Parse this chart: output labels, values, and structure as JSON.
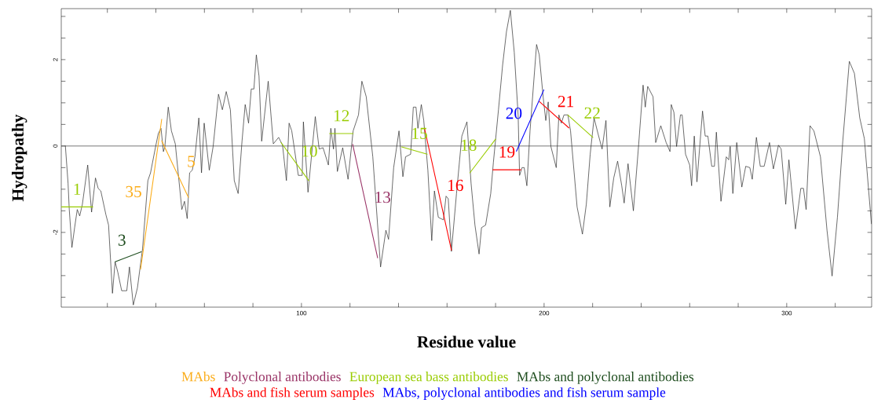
{
  "chart_data": {
    "type": "line",
    "xlabel": "Residue value",
    "ylabel": "Hydropathy",
    "xlim": [
      1,
      335
    ],
    "ylim": [
      -3.73,
      3.18
    ],
    "xticks": [
      {
        "value": 20,
        "label": null
      },
      {
        "value": 40,
        "label": null
      },
      {
        "value": 60,
        "label": null
      },
      {
        "value": 80,
        "label": null
      },
      100,
      {
        "value": 120,
        "label": null
      },
      {
        "value": 140,
        "label": null
      },
      {
        "value": 160,
        "label": null
      },
      {
        "value": 180,
        "label": null
      },
      200,
      {
        "value": 220,
        "label": null
      },
      {
        "value": 240,
        "label": null
      },
      {
        "value": 260,
        "label": null
      },
      {
        "value": 280,
        "label": null
      },
      300,
      {
        "value": 320,
        "label": null
      }
    ],
    "yticks": [
      {
        "value": -3.5,
        "label": null
      },
      {
        "value": -3,
        "label": null
      },
      {
        "value": -2.5,
        "label": null
      },
      -2,
      {
        "value": -1.5,
        "label": null
      },
      {
        "value": -1,
        "label": null
      },
      {
        "value": -0.5,
        "label": null
      },
      0,
      {
        "value": 0.5,
        "label": null
      },
      {
        "value": 1,
        "label": null
      },
      {
        "value": 1.5,
        "label": null
      },
      2,
      {
        "value": 2.5,
        "label": null
      },
      {
        "value": 3,
        "label": null
      }
    ],
    "legend": "bottom",
    "ref_lines": [
      {
        "axis": "y",
        "value": 0,
        "color": "#555555"
      }
    ],
    "series": [
      {
        "color": "#222222",
        "x": [
          2.7,
          3.8,
          4.3,
          5.4,
          6.5,
          7.6,
          8.6,
          9.7,
          11.9,
          13.5,
          15.1,
          16.2,
          17.3,
          19.4,
          20.5,
          22.1,
          23.2,
          24.3,
          25.9,
          28.0,
          29.1,
          30.7,
          32.4,
          34.5,
          36.7,
          37.8,
          39.9,
          41.0,
          42.1,
          43.1,
          43.7,
          45.1,
          46.4,
          48.0,
          50.7,
          51.8,
          52.9,
          53.9,
          55.0,
          56.1,
          57.7,
          58.8,
          59.9,
          62.0,
          63.6,
          65.8,
          67.4,
          69.0,
          70.7,
          72.3,
          73.9,
          75.5,
          76.8,
          78.2,
          79.3,
          80.4,
          81.4,
          82.5,
          83.6,
          86.3,
          88.4,
          90.6,
          92.2,
          93.8,
          94.9,
          96.0,
          98.7,
          100.3,
          100.8,
          102.7,
          105.7,
          107.3,
          108.9,
          111.1,
          112.1,
          113.2,
          113.8,
          114.8,
          117.0,
          119.2,
          121.3,
          123.5,
          124.9,
          126.7,
          129.4,
          132.6,
          134.8,
          135.9,
          138.0,
          140.2,
          141.8,
          142.9,
          145.0,
          146.1,
          147.2,
          148.0,
          149.4,
          150.4,
          152.1,
          153.7,
          154.8,
          156.4,
          158.5,
          159.6,
          160.5,
          161.8,
          163.9,
          166.1,
          168.2,
          169.9,
          171.5,
          173.2,
          174.2,
          175.9,
          178.0,
          179.1,
          181.2,
          182.9,
          184.5,
          186.1,
          187.7,
          189.3,
          189.9,
          190.9,
          191.8,
          192.9,
          194.2,
          196.9,
          198.0,
          199.6,
          200.7,
          201.7,
          202.8,
          205.0,
          206.1,
          207.1,
          208.2,
          209.8,
          210.9,
          213.6,
          215.8,
          217.4,
          219.0,
          220.6,
          222.2,
          223.9,
          225.5,
          227.1,
          228.7,
          230.3,
          232.0,
          233.0,
          234.6,
          236.8,
          239.0,
          240.8,
          241.7,
          242.7,
          244.9,
          246.0,
          248.1,
          250.3,
          251.9,
          252.4,
          253.5,
          254.6,
          256.2,
          256.9,
          258.3,
          260.0,
          260.8,
          261.9,
          263.0,
          265.3,
          266.4,
          267.5,
          269.1,
          270.2,
          271.0,
          272.9,
          275.1,
          276.1,
          276.7,
          277.8,
          279.4,
          281.5,
          283.1,
          284.8,
          285.8,
          287.5,
          289.1,
          290.7,
          292.9,
          294.5,
          296.6,
          297.7,
          299.6,
          300.9,
          303.6,
          305.8,
          306.9,
          308.0,
          309.6,
          311.2,
          313.9,
          316.6,
          318.7,
          320.9,
          323.1,
          325.8,
          327.9,
          330.1,
          332.0,
          334.9
        ],
        "values": [
          0.0,
          -0.86,
          -1.47,
          -2.35,
          -1.89,
          -1.47,
          -1.62,
          -1.35,
          -0.44,
          -1.53,
          -0.74,
          -0.98,
          -1.04,
          -1.59,
          -1.83,
          -3.41,
          -2.68,
          -2.92,
          -3.35,
          -3.35,
          -2.8,
          -3.68,
          -3.28,
          -2.38,
          -0.8,
          -0.62,
          -0.01,
          0.29,
          0.41,
          -0.13,
          -0.01,
          0.9,
          0.35,
          0.05,
          -1.47,
          -1.28,
          -1.68,
          -0.62,
          -0.56,
          -0.25,
          0.65,
          -0.62,
          0.53,
          -0.56,
          -0.01,
          1.2,
          0.84,
          1.26,
          0.84,
          -0.8,
          -1.1,
          0.11,
          0.96,
          0.53,
          1.32,
          1.32,
          2.11,
          1.62,
          0.11,
          1.5,
          0.05,
          0.2,
          0.02,
          -0.8,
          0.53,
          0.35,
          -0.68,
          -0.68,
          0.56,
          -1.07,
          0.68,
          -0.07,
          -0.04,
          -0.44,
          0.41,
          -0.07,
          0.41,
          -0.59,
          -0.04,
          -0.77,
          0.35,
          0.72,
          1.5,
          1.14,
          -0.25,
          -2.8,
          -1.95,
          -2.16,
          -0.5,
          0.35,
          -0.71,
          -0.25,
          -0.19,
          0.9,
          0.9,
          0.41,
          0.96,
          0.59,
          -0.56,
          -2.19,
          -1.04,
          -1.65,
          -1.71,
          -1.16,
          -1.22,
          -2.44,
          -1.1,
          0.23,
          0.56,
          -0.86,
          -1.83,
          -2.5,
          -1.89,
          -1.83,
          -1.1,
          -0.38,
          0.84,
          1.87,
          2.65,
          3.14,
          2.17,
          0.72,
          -0.68,
          -0.5,
          -0.5,
          -0.92,
          0.35,
          2.35,
          2.11,
          1.14,
          0.59,
          1.02,
          -0.01,
          -0.5,
          0.72,
          0.53,
          0.72,
          0.72,
          0.35,
          -1.41,
          -2.04,
          -1.35,
          -0.19,
          0.65,
          0.29,
          -0.07,
          0.59,
          -1.41,
          -0.74,
          -0.35,
          -0.92,
          -1.32,
          -0.41,
          -1.5,
          0.05,
          1.41,
          0.9,
          1.38,
          1.14,
          0.08,
          0.47,
          0.08,
          -0.13,
          0.96,
          0.78,
          -0.01,
          0.72,
          0.72,
          -0.19,
          -0.44,
          -0.92,
          0.23,
          -0.83,
          0.81,
          0.23,
          0.23,
          -0.47,
          -0.47,
          0.32,
          -1.28,
          -0.25,
          -0.32,
          -0.01,
          -1.1,
          0.08,
          -0.95,
          -0.47,
          -0.5,
          -0.77,
          0.2,
          -0.47,
          -0.47,
          0.08,
          -0.53,
          0.02,
          -0.07,
          -1.35,
          -0.32,
          -1.92,
          -0.98,
          -0.98,
          -1.47,
          0.47,
          0.35,
          -0.25,
          -1.95,
          -3.01,
          -1.65,
          0.11,
          1.96,
          1.68,
          0.65,
          0.17,
          -1.8
        ]
      },
      {
        "name": "MAbs",
        "color": "#fbac18",
        "x": [
          33.7,
          42.4,
          null,
          42.4,
          53.4
        ],
        "values": [
          -2.85,
          0.62,
          null,
          0.12,
          -1.19
        ]
      },
      {
        "name": "Polyclonal antibodies",
        "color": "#993366",
        "x": [
          121.1,
          131.4
        ],
        "values": [
          0.04,
          -2.59
        ]
      },
      {
        "name": "European sea bass antibodies",
        "color": "#99cc00",
        "x": [
          1,
          14.0,
          null,
          91.6,
          103.0,
          null,
          111.6,
          121.3,
          null,
          141.3,
          151.8,
          null,
          169.4,
          180.0,
          null,
          209.8,
          220.1
        ],
        "values": [
          -1.41,
          -1.41,
          null,
          0.08,
          -0.8,
          null,
          0.29,
          0.29,
          null,
          -0.02,
          -0.19,
          null,
          -0.62,
          0.16,
          null,
          0.72,
          0.2
        ]
      },
      {
        "name": "MAbs and polyclonal antibodies",
        "color": "#1e4d1e",
        "x": [
          23.2,
          34.0
        ],
        "values": [
          -2.68,
          -2.45
        ]
      },
      {
        "name": "MAbs and fish serum samples",
        "color": "#ff0000",
        "x": [
          150.7,
          161.8,
          null,
          178.9,
          190.4,
          null,
          198.0,
          210.2
        ],
        "values": [
          0.41,
          -2.41,
          null,
          -0.55,
          -0.55,
          null,
          1.03,
          0.42
        ]
      },
      {
        "name": "MAbs, polyclonal antibodies and fish serum sample",
        "color": "#0000ff",
        "x": [
          188.6,
          199.9
        ],
        "values": [
          -0.12,
          1.3
        ]
      }
    ],
    "annotations": [
      {
        "text": "1",
        "x": 7.5,
        "y": -1.41
      },
      {
        "text": "3",
        "x": 28.6,
        "y": -2.565
      },
      {
        "text": "35",
        "x": 38.05,
        "y": -1.115
      },
      {
        "text": "5",
        "x": 47.9,
        "y": -0.535
      },
      {
        "text": "10",
        "x": 97.3,
        "y": -0.36
      },
      {
        "text": "12",
        "x": 116.45,
        "y": 0.29
      },
      {
        "text": "13",
        "x": 126.25,
        "y": -1.275
      },
      {
        "text": "15",
        "x": 146.55,
        "y": -0.105
      },
      {
        "text": "16",
        "x": 156.25,
        "y": -1.0
      },
      {
        "text": "18",
        "x": 174.7,
        "y": -0.23
      },
      {
        "text": "19",
        "x": 184.65,
        "y": -0.55
      },
      {
        "text": "20",
        "x": 194.25,
        "y": 0.59
      },
      {
        "text": "21",
        "x": 204.1,
        "y": 0.725
      },
      {
        "text": "22",
        "x": 214.95,
        "y": 0.46
      }
    ]
  }
}
